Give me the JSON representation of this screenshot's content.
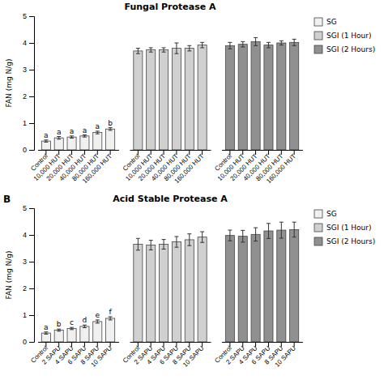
{
  "chart_data": [
    {
      "type": "bar",
      "title": "Fungal Protease A",
      "ylabel": "FAN (mg N/g)",
      "categories": [
        "Control",
        "10,000 HUT",
        "20,000 HUT",
        "40,000 HUT",
        "80,000 HUT",
        "160,000 HUT"
      ],
      "series": [
        {
          "name": "SG",
          "color": "#f0f0f0",
          "values": [
            0.33,
            0.45,
            0.48,
            0.52,
            0.65,
            0.78
          ],
          "errors": [
            0.04,
            0.05,
            0.04,
            0.04,
            0.05,
            0.05
          ],
          "letters": [
            "a",
            "a",
            "a",
            "a",
            "a",
            "b"
          ]
        },
        {
          "name": "SGI (1 Hour)",
          "color": "#d0d0d0",
          "values": [
            3.7,
            3.74,
            3.74,
            3.8,
            3.8,
            3.92
          ],
          "errors": [
            0.1,
            0.08,
            0.08,
            0.2,
            0.1,
            0.1
          ]
        },
        {
          "name": "SGI (2 Hours)",
          "color": "#909090",
          "values": [
            3.9,
            3.95,
            4.05,
            3.92,
            4.0,
            4.02
          ],
          "errors": [
            0.12,
            0.1,
            0.15,
            0.1,
            0.08,
            0.12
          ]
        }
      ],
      "ylim": [
        0,
        5
      ],
      "yticks": [
        0,
        1,
        2,
        3,
        4,
        5
      ],
      "grid": false,
      "legend": "right"
    },
    {
      "type": "bar",
      "title": "Acid Stable Protease A",
      "ylabel": "FAN (mg N/g)",
      "panel_label": "B",
      "categories": [
        "Control",
        "2 SAPU",
        "4 SAPU",
        "6 SAPU",
        "8 SAPU",
        "10 SAPU"
      ],
      "series": [
        {
          "name": "SG",
          "color": "#f0f0f0",
          "values": [
            0.33,
            0.44,
            0.5,
            0.58,
            0.76,
            0.88
          ],
          "errors": [
            0.04,
            0.04,
            0.04,
            0.05,
            0.06,
            0.06
          ],
          "letters": [
            "a",
            "b",
            "c",
            "d",
            "e",
            "f"
          ]
        },
        {
          "name": "SGI (1 Hour)",
          "color": "#d0d0d0",
          "values": [
            3.65,
            3.62,
            3.65,
            3.74,
            3.82,
            3.92
          ],
          "errors": [
            0.22,
            0.18,
            0.18,
            0.2,
            0.22,
            0.2
          ]
        },
        {
          "name": "SGI (2 Hours)",
          "color": "#909090",
          "values": [
            3.98,
            3.95,
            4.02,
            4.15,
            4.18,
            4.2
          ],
          "errors": [
            0.2,
            0.22,
            0.25,
            0.28,
            0.3,
            0.28
          ]
        }
      ],
      "ylim": [
        0,
        5
      ],
      "yticks": [
        0,
        1,
        2,
        3,
        4,
        5
      ],
      "grid": false,
      "legend": "right"
    }
  ]
}
